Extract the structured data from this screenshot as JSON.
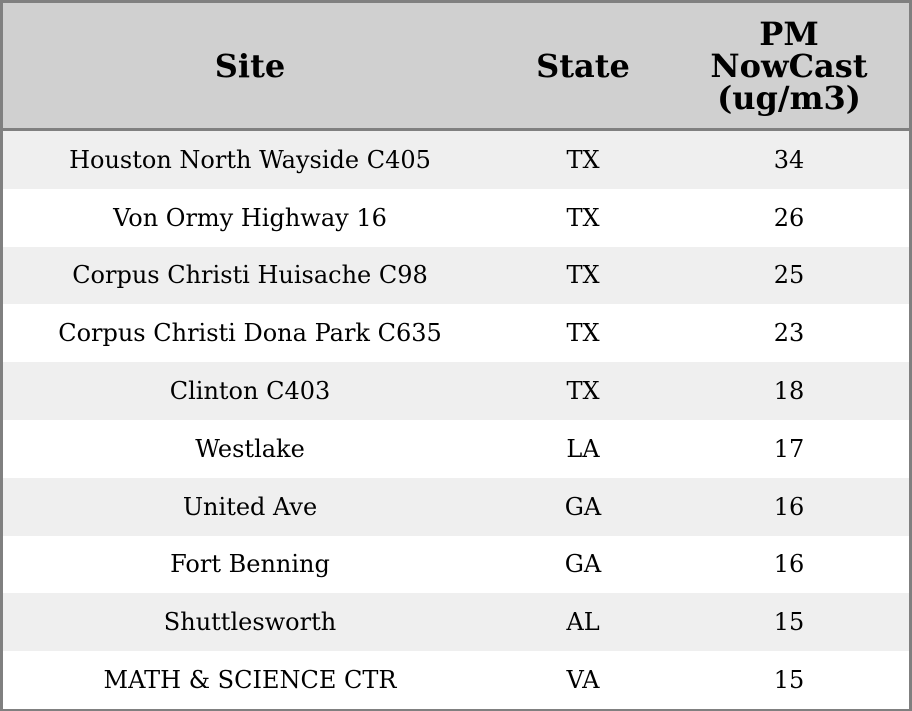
{
  "chart_data": {
    "type": "table",
    "columns": [
      "Site",
      "State",
      "PM NowCast (ug/m3)"
    ],
    "header_lines": {
      "pm": [
        "PM",
        "NowCast",
        "(ug/m3)"
      ]
    },
    "rows": [
      {
        "site": "Houston North Wayside C405",
        "state": "TX",
        "pm": "34"
      },
      {
        "site": "Von Ormy Highway 16",
        "state": "TX",
        "pm": "26"
      },
      {
        "site": "Corpus Christi Huisache C98",
        "state": "TX",
        "pm": "25"
      },
      {
        "site": "Corpus Christi Dona Park C635",
        "state": "TX",
        "pm": "23"
      },
      {
        "site": "Clinton C403",
        "state": "TX",
        "pm": "18"
      },
      {
        "site": "Westlake",
        "state": "LA",
        "pm": "17"
      },
      {
        "site": "United Ave",
        "state": "GA",
        "pm": "16"
      },
      {
        "site": "Fort Benning",
        "state": "GA",
        "pm": "16"
      },
      {
        "site": "Shuttlesworth",
        "state": "AL",
        "pm": "15"
      },
      {
        "site": "MATH & SCIENCE CTR",
        "state": "VA",
        "pm": "15"
      }
    ],
    "colors": {
      "header_bg": "#d0d0d0",
      "row_alt_bg": "#efefef",
      "row_bg": "#ffffff",
      "border": "#808080"
    }
  }
}
